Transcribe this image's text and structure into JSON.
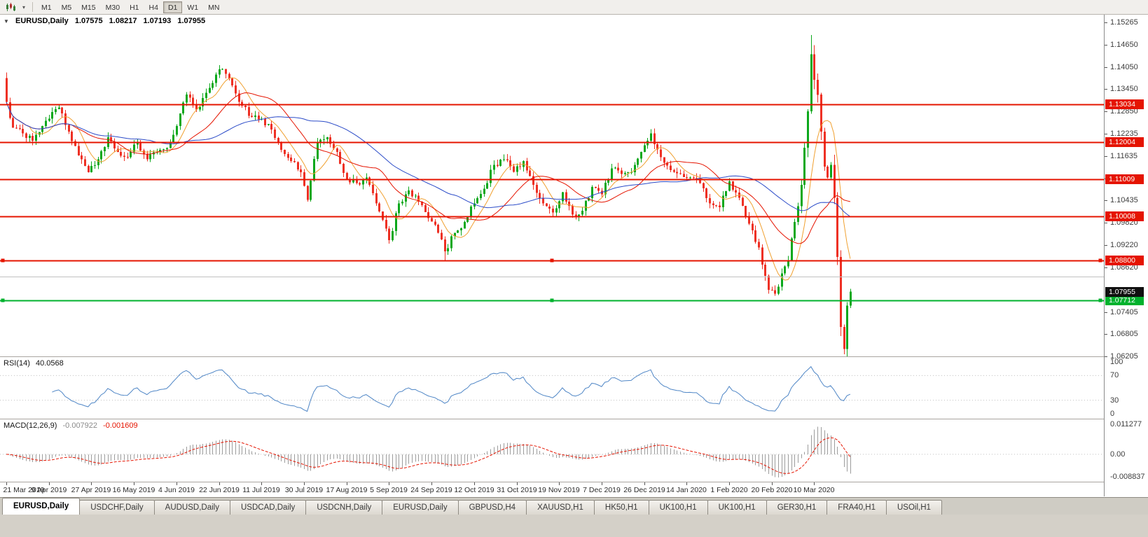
{
  "icons": {
    "chart_caret": "▼",
    "toolbar_dropdown": "▾"
  },
  "toolbar": {
    "timeframes": [
      "M1",
      "M5",
      "M15",
      "M30",
      "H1",
      "H4",
      "D1",
      "W1",
      "MN"
    ],
    "active_timeframe": "D1"
  },
  "chart_header": {
    "symbol": "EURUSD,Daily",
    "open": "1.07575",
    "high": "1.08217",
    "low": "1.07193",
    "close": "1.07955"
  },
  "price_axis": {
    "ticks": [
      "1.15265",
      "1.14650",
      "1.14050",
      "1.13450",
      "1.12850",
      "1.12235",
      "1.11635",
      "1.11030",
      "1.10435",
      "1.09820",
      "1.09220",
      "1.08620",
      "1.07405",
      "1.06805",
      "1.06205"
    ],
    "current_price": "1.07955",
    "current_price_value": 1.07955
  },
  "hlines": [
    {
      "price": 1.13034,
      "label": "1.13034",
      "color": "#e51400",
      "width": 2,
      "handles": false
    },
    {
      "price": 1.12004,
      "label": "1.12004",
      "color": "#e51400",
      "width": 2,
      "handles": false
    },
    {
      "price": 1.11009,
      "label": "1.11009",
      "color": "#e51400",
      "width": 2,
      "handles": false
    },
    {
      "price": 1.10008,
      "label": "1.10008",
      "color": "#e51400",
      "width": 2,
      "handles": false
    },
    {
      "price": 1.088,
      "label": "1.08800",
      "color": "#e51400",
      "width": 2,
      "handles": true
    },
    {
      "price": 1.0836,
      "label": "",
      "color": "#c0c0c0",
      "width": 1,
      "handles": false
    },
    {
      "price": 1.07712,
      "label": "1.07712",
      "color": "#00b22d",
      "width": 2,
      "handles": true
    }
  ],
  "rsi": {
    "name": "RSI(14)",
    "value": "40.0568",
    "axis_ticks": [
      "100",
      "70",
      "30",
      "0"
    ],
    "levels": [
      70,
      30
    ],
    "line_color": "#4f86c6"
  },
  "macd": {
    "name": "MACD(12,26,9)",
    "value_main": "-0.007922",
    "value_signal": "-0.001609",
    "axis_top": "0.011277",
    "axis_zero": "0.00",
    "axis_bottom": "-0.008837",
    "range": [
      0.011277,
      -0.008837
    ],
    "histogram_color": "#9c9c9c",
    "signal_color": "#e51400"
  },
  "date_axis": [
    "21 Mar 2019",
    "9 Apr 2019",
    "27 Apr 2019",
    "16 May 2019",
    "4 Jun 2019",
    "22 Jun 2019",
    "11 Jul 2019",
    "30 Jul 2019",
    "17 Aug 2019",
    "5 Sep 2019",
    "24 Sep 2019",
    "12 Oct 2019",
    "31 Oct 2019",
    "19 Nov 2019",
    "7 Dec 2019",
    "26 Dec 2019",
    "14 Jan 2020",
    "1 Feb 2020",
    "20 Feb 2020",
    "10 Mar 2020"
  ],
  "tabs": [
    {
      "label": "EURUSD,Daily",
      "active": true
    },
    {
      "label": "USDCHF,Daily",
      "active": false
    },
    {
      "label": "AUDUSD,Daily",
      "active": false
    },
    {
      "label": "USDCAD,Daily",
      "active": false
    },
    {
      "label": "USDCNH,Daily",
      "active": false
    },
    {
      "label": "EURUSD,Daily",
      "active": false
    },
    {
      "label": "GBPUSD,H4",
      "active": false
    },
    {
      "label": "XAUUSD,H1",
      "active": false
    },
    {
      "label": "HK50,H1",
      "active": false
    },
    {
      "label": "UK100,H1",
      "active": false
    },
    {
      "label": "UK100,H1",
      "active": false
    },
    {
      "label": "GER30,H1",
      "active": false
    },
    {
      "label": "FRA40,H1",
      "active": false
    },
    {
      "label": "USOil,H1",
      "active": false
    }
  ],
  "chart_data": {
    "type": "candlestick",
    "symbol": "EURUSD",
    "timeframe": "Daily",
    "price_range": [
      1.062,
      1.1547
    ],
    "candle_count": 259,
    "open_first": 1.1375,
    "last_close": 1.07955,
    "up_color": "#0ca81c",
    "down_color": "#ee3024",
    "close_anchors": [
      [
        0,
        1.131
      ],
      [
        2,
        1.124
      ],
      [
        5,
        1.1225
      ],
      [
        8,
        1.1205
      ],
      [
        11,
        1.1245
      ],
      [
        13,
        1.1265
      ],
      [
        16,
        1.1295
      ],
      [
        19,
        1.123
      ],
      [
        22,
        1.1165
      ],
      [
        25,
        1.112
      ],
      [
        28,
        1.1155
      ],
      [
        31,
        1.1215
      ],
      [
        34,
        1.1175
      ],
      [
        37,
        1.116
      ],
      [
        40,
        1.12
      ],
      [
        43,
        1.1155
      ],
      [
        46,
        1.1175
      ],
      [
        49,
        1.1185
      ],
      [
        52,
        1.1245
      ],
      [
        55,
        1.133
      ],
      [
        58,
        1.129
      ],
      [
        61,
        1.1335
      ],
      [
        64,
        1.1385
      ],
      [
        66,
        1.14
      ],
      [
        69,
        1.1355
      ],
      [
        72,
        1.13
      ],
      [
        75,
        1.127
      ],
      [
        78,
        1.1265
      ],
      [
        81,
        1.1235
      ],
      [
        84,
        1.118
      ],
      [
        87,
        1.115
      ],
      [
        90,
        1.112
      ],
      [
        92,
        1.1045
      ],
      [
        95,
        1.12
      ],
      [
        98,
        1.1215
      ],
      [
        101,
        1.1175
      ],
      [
        104,
        1.11
      ],
      [
        107,
        1.109
      ],
      [
        110,
        1.1105
      ],
      [
        113,
        1.1035
      ],
      [
        115,
        1.099
      ],
      [
        117,
        1.0935
      ],
      [
        120,
        1.1035
      ],
      [
        123,
        1.107
      ],
      [
        126,
        1.104
      ],
      [
        129,
        1.0995
      ],
      [
        132,
        1.0955
      ],
      [
        134,
        1.0905
      ],
      [
        137,
        1.0955
      ],
      [
        140,
        1.0985
      ],
      [
        143,
        1.1035
      ],
      [
        146,
        1.1075
      ],
      [
        149,
        1.114
      ],
      [
        152,
        1.1155
      ],
      [
        155,
        1.112
      ],
      [
        158,
        1.115
      ],
      [
        161,
        1.1085
      ],
      [
        164,
        1.1035
      ],
      [
        167,
        1.101
      ],
      [
        170,
        1.1065
      ],
      [
        173,
        1.1005
      ],
      [
        176,
        1.1015
      ],
      [
        179,
        1.108
      ],
      [
        182,
        1.106
      ],
      [
        185,
        1.113
      ],
      [
        188,
        1.1115
      ],
      [
        191,
        1.112
      ],
      [
        194,
        1.1175
      ],
      [
        197,
        1.1225
      ],
      [
        200,
        1.116
      ],
      [
        203,
        1.1125
      ],
      [
        206,
        1.1115
      ],
      [
        209,
        1.1105
      ],
      [
        212,
        1.109
      ],
      [
        215,
        1.1035
      ],
      [
        218,
        1.1025
      ],
      [
        221,
        1.1095
      ],
      [
        224,
        1.105
      ],
      [
        227,
        1.098
      ],
      [
        230,
        1.0915
      ],
      [
        233,
        1.08
      ],
      [
        235,
        1.079
      ],
      [
        237,
        1.0845
      ],
      [
        239,
        1.088
      ],
      [
        241,
        1.0985
      ],
      [
        243,
        1.1085
      ],
      [
        245,
        1.1285
      ],
      [
        246,
        1.144
      ],
      [
        247,
        1.137
      ],
      [
        248,
        1.133
      ],
      [
        249,
        1.123
      ],
      [
        250,
        1.1135
      ],
      [
        251,
        1.1105
      ],
      [
        252,
        1.114
      ],
      [
        253,
        1.105
      ],
      [
        254,
        1.089
      ],
      [
        255,
        1.07
      ],
      [
        256,
        1.064
      ],
      [
        257,
        1.0758
      ],
      [
        258,
        1.07955
      ]
    ],
    "extremes": [
      [
        0,
        "high",
        1.139
      ],
      [
        117,
        "low",
        1.0926
      ],
      [
        134,
        "low",
        1.0879
      ],
      [
        246,
        "high",
        1.1492
      ],
      [
        256,
        "low",
        1.0626
      ]
    ],
    "moving_averages": [
      {
        "period": 8,
        "color": "#f0a030"
      },
      {
        "period": 21,
        "color": "#e51400"
      },
      {
        "period": 45,
        "color": "#2b4bc8"
      }
    ],
    "date_tick_indices": [
      0,
      13,
      26,
      39,
      52,
      65,
      78,
      91,
      104,
      117,
      130,
      143,
      156,
      169,
      182,
      195,
      208,
      221,
      234,
      247
    ]
  }
}
